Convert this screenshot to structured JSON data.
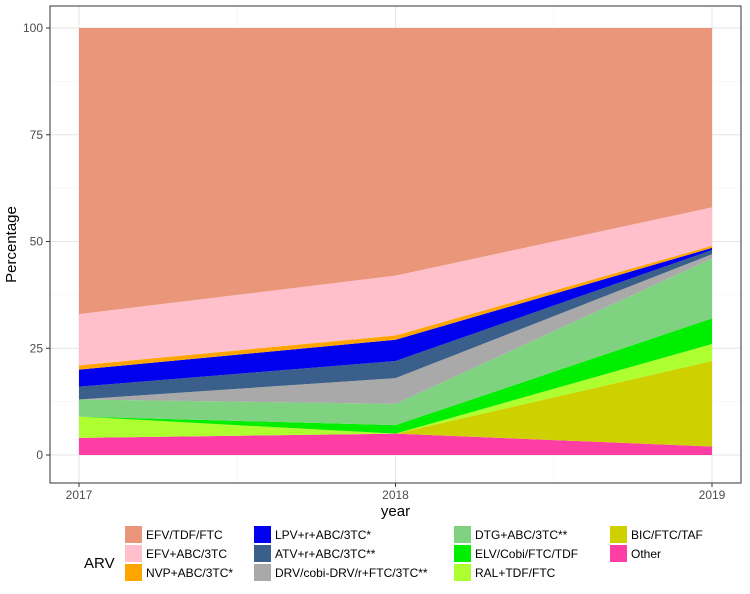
{
  "chart_data": {
    "type": "area",
    "stacked": true,
    "x": [
      2017,
      2018,
      2019
    ],
    "xlabel": "year",
    "ylabel": "Percentage",
    "ylim": [
      0,
      100
    ],
    "xlim": [
      2017,
      2019
    ],
    "yticks": [
      0,
      25,
      50,
      75,
      100
    ],
    "xticks": [
      2017,
      2018,
      2019
    ],
    "grid": true,
    "legend_title": "ARV",
    "legend_position": "bottom",
    "series": [
      {
        "name": "Other",
        "color": "#ff3ea5",
        "values": [
          4,
          5,
          2
        ]
      },
      {
        "name": "BIC/FTC/TAF",
        "color": "#cfd000",
        "values": [
          0,
          0,
          20
        ]
      },
      {
        "name": "RAL+TDF/FTC",
        "color": "#adff2f",
        "values": [
          5,
          0,
          4
        ]
      },
      {
        "name": "ELV/Cobi/FTC/TDF",
        "color": "#00ee00",
        "values": [
          0,
          2,
          6
        ]
      },
      {
        "name": "DTG+ABC/3TC**",
        "color": "#7fd27f",
        "values": [
          4,
          5,
          14
        ]
      },
      {
        "name": "DRV/cobi-DRV/r+FTC/3TC**",
        "color": "#a9a9a9",
        "values": [
          0,
          6,
          1
        ]
      },
      {
        "name": "ATV+r+ABC/3TC**",
        "color": "#3a5f8a",
        "values": [
          3,
          4,
          1
        ]
      },
      {
        "name": "LPV+r+ABC/3TC*",
        "color": "#0000ee",
        "values": [
          4,
          5,
          0.5
        ]
      },
      {
        "name": "NVP+ABC/3TC*",
        "color": "#ffa500",
        "values": [
          1,
          1,
          0.5
        ]
      },
      {
        "name": "EFV+ABC/3TC",
        "color": "#ffc0cb",
        "values": [
          12,
          14,
          9
        ]
      },
      {
        "name": "EFV/TDF/FTC",
        "color": "#e9967a",
        "values": [
          67,
          58,
          42
        ]
      }
    ],
    "legend_columns": [
      [
        "EFV/TDF/FTC",
        "EFV+ABC/3TC",
        "NVP+ABC/3TC*"
      ],
      [
        "LPV+r+ABC/3TC*",
        "ATV+r+ABC/3TC**",
        "DRV/cobi-DRV/r+FTC/3TC**"
      ],
      [
        "DTG+ABC/3TC**",
        "ELV/Cobi/FTC/TDF",
        "RAL+TDF/FTC"
      ],
      [
        "BIC/FTC/TAF",
        "Other"
      ]
    ]
  }
}
